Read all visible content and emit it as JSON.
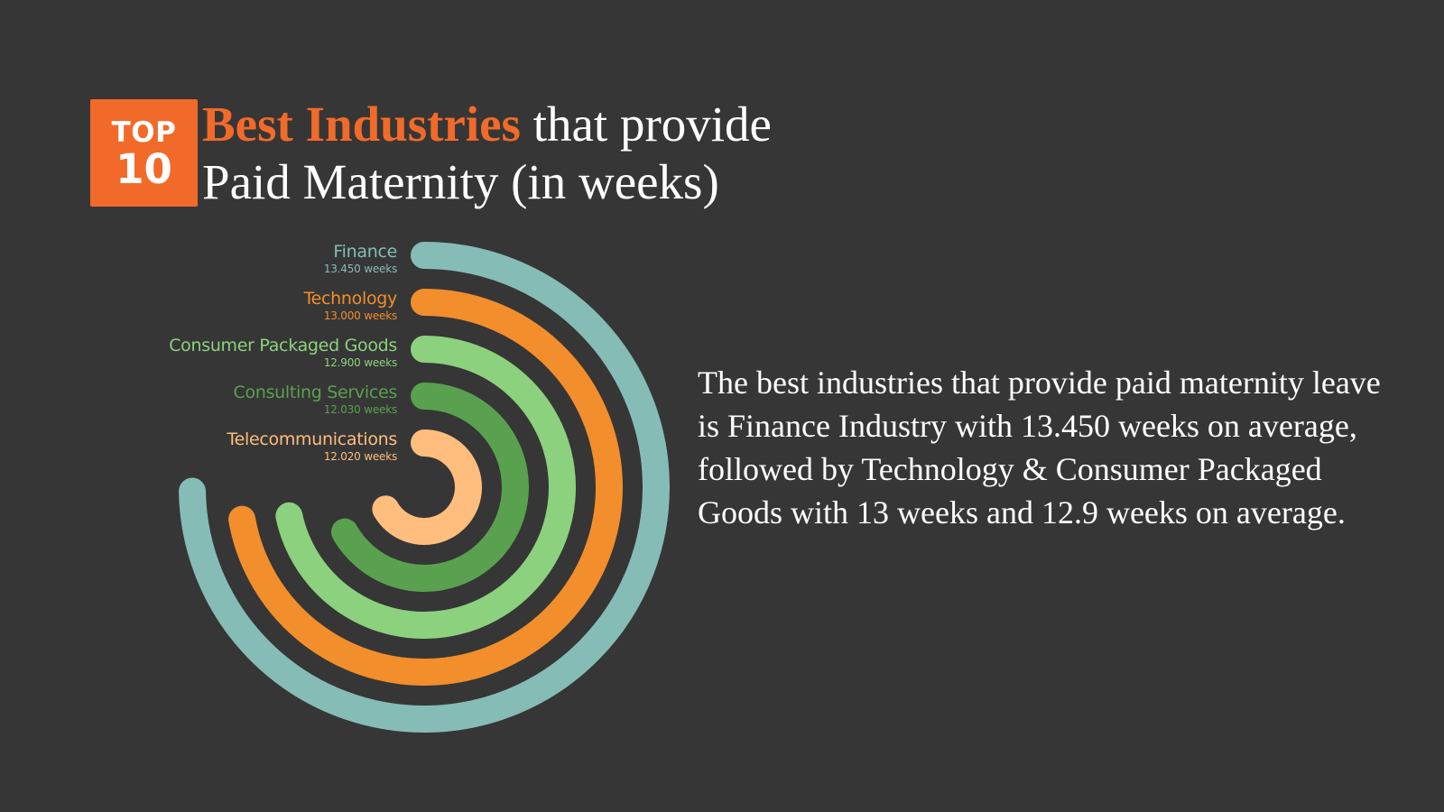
{
  "badge": {
    "top": "TOP",
    "number": "10"
  },
  "title": {
    "highlight": "Best Industries",
    "rest_line1": " that provide",
    "line2": "Paid Maternity (in weeks)"
  },
  "chart_data": {
    "type": "radial-bar",
    "unit": "weeks",
    "scale_max": 18,
    "categories": [
      "Finance",
      "Technology",
      "Consumer Packaged Goods",
      "Consulting Services",
      "Telecommunications"
    ],
    "values": [
      13.45,
      13.0,
      12.9,
      12.03,
      12.02
    ],
    "value_labels": [
      "13.450 weeks",
      "13.000 weeks",
      "12.900 weeks",
      "12.030 weeks",
      "12.020 weeks"
    ],
    "colors": [
      "#86bcb6",
      "#f28e2b",
      "#8cd17d",
      "#59a14f",
      "#ffbe7d"
    ]
  },
  "description": "The best industries that provide paid maternity leave is Finance Industry with 13.450 weeks on average, followed by Technology & Consumer Packaged Goods with 13 weeks and 12.9 weeks on average."
}
